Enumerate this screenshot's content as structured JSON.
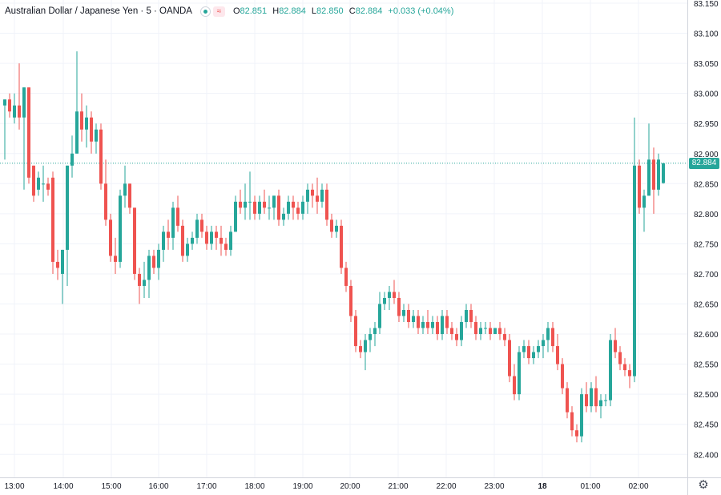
{
  "header": {
    "title": "Australian Dollar / Japanese Yen · 5 · OANDA",
    "ohlc": {
      "open_label": "O",
      "open": "82.851",
      "high_label": "H",
      "high": "82.884",
      "low_label": "L",
      "low": "82.850",
      "close_label": "C",
      "close": "82.884",
      "change": "+0.033 (+0.04%)"
    },
    "market_status_icon": "market-open-dot-icon",
    "indicator_icon": "wave-icon"
  },
  "last_price_label": "82.884",
  "settings_icon": "gear-icon",
  "colors": {
    "up": "#26a69a",
    "down": "#ef5350",
    "last_price_line": "#26a69a",
    "grid": "#f0f3fa",
    "axis_text": "#131722"
  },
  "chart_data": {
    "type": "candlestick",
    "interval": "5",
    "y_ticks": [
      "83.150",
      "83.100",
      "83.050",
      "83.000",
      "82.950",
      "82.900",
      "82.850",
      "82.800",
      "82.750",
      "82.700",
      "82.650",
      "82.600",
      "82.550",
      "82.500",
      "82.450",
      "82.400"
    ],
    "x_ticks": [
      "13:00",
      "14:00",
      "15:00",
      "16:00",
      "17:00",
      "18:00",
      "19:00",
      "20:00",
      "21:00",
      "22:00",
      "23:00",
      "18",
      "01:00",
      "02:00"
    ],
    "ylim": [
      82.37,
      83.155
    ],
    "last_price": 82.884,
    "grid": true,
    "candles": [
      [
        82.98,
        82.99,
        82.89,
        82.99
      ],
      [
        82.99,
        83.0,
        82.96,
        82.97
      ],
      [
        82.96,
        83.0,
        82.95,
        82.98
      ],
      [
        82.98,
        83.05,
        82.94,
        82.96
      ],
      [
        82.96,
        83.01,
        82.84,
        83.01
      ],
      [
        83.01,
        83.01,
        82.85,
        82.86
      ],
      [
        82.88,
        82.88,
        82.82,
        82.83
      ],
      [
        82.84,
        82.87,
        82.83,
        82.86
      ],
      [
        82.85,
        82.88,
        82.82,
        82.85
      ],
      [
        82.85,
        82.86,
        82.83,
        82.84
      ],
      [
        82.86,
        82.87,
        82.7,
        82.72
      ],
      [
        82.72,
        82.74,
        82.69,
        82.71
      ],
      [
        82.7,
        82.74,
        82.65,
        82.74
      ],
      [
        82.74,
        82.88,
        82.68,
        82.88
      ],
      [
        82.88,
        82.93,
        82.86,
        82.9
      ],
      [
        82.9,
        83.07,
        82.9,
        82.97
      ],
      [
        82.97,
        83.0,
        82.92,
        82.94
      ],
      [
        82.94,
        82.98,
        82.91,
        82.96
      ],
      [
        82.96,
        82.97,
        82.9,
        82.92
      ],
      [
        82.92,
        82.95,
        82.9,
        82.94
      ],
      [
        82.94,
        82.95,
        82.84,
        82.85
      ],
      [
        82.85,
        82.89,
        82.78,
        82.79
      ],
      [
        82.79,
        82.8,
        82.72,
        82.73
      ],
      [
        82.73,
        82.76,
        82.7,
        82.72
      ],
      [
        82.72,
        82.84,
        82.71,
        82.83
      ],
      [
        82.83,
        82.88,
        82.81,
        82.85
      ],
      [
        82.85,
        82.85,
        82.8,
        82.81
      ],
      [
        82.81,
        82.81,
        82.69,
        82.7
      ],
      [
        82.7,
        82.71,
        82.65,
        82.68
      ],
      [
        82.68,
        82.72,
        82.66,
        82.69
      ],
      [
        82.69,
        82.74,
        82.66,
        82.73
      ],
      [
        82.73,
        82.74,
        82.7,
        82.71
      ],
      [
        82.71,
        82.75,
        82.69,
        82.74
      ],
      [
        82.74,
        82.78,
        82.72,
        82.77
      ],
      [
        82.77,
        82.79,
        82.74,
        82.76
      ],
      [
        82.76,
        82.82,
        82.74,
        82.81
      ],
      [
        82.81,
        82.83,
        82.77,
        82.78
      ],
      [
        82.78,
        82.79,
        82.72,
        82.73
      ],
      [
        82.73,
        82.76,
        82.72,
        82.75
      ],
      [
        82.75,
        82.77,
        82.74,
        82.76
      ],
      [
        82.76,
        82.8,
        82.75,
        82.79
      ],
      [
        82.79,
        82.8,
        82.76,
        82.77
      ],
      [
        82.77,
        82.78,
        82.74,
        82.75
      ],
      [
        82.75,
        82.78,
        82.74,
        82.77
      ],
      [
        82.77,
        82.78,
        82.74,
        82.76
      ],
      [
        82.76,
        82.78,
        82.73,
        82.75
      ],
      [
        82.75,
        82.76,
        82.73,
        82.74
      ],
      [
        82.74,
        82.78,
        82.73,
        82.77
      ],
      [
        82.77,
        82.83,
        82.77,
        82.82
      ],
      [
        82.82,
        82.84,
        82.8,
        82.81
      ],
      [
        82.81,
        82.85,
        82.79,
        82.82
      ],
      [
        82.82,
        82.87,
        82.79,
        82.82
      ],
      [
        82.82,
        82.83,
        82.79,
        82.8
      ],
      [
        82.8,
        82.83,
        82.79,
        82.82
      ],
      [
        82.82,
        82.84,
        82.8,
        82.81
      ],
      [
        82.81,
        82.83,
        82.79,
        82.81
      ],
      [
        82.81,
        82.83,
        82.79,
        82.83
      ],
      [
        82.83,
        82.84,
        82.78,
        82.79
      ],
      [
        82.79,
        82.81,
        82.78,
        82.8
      ],
      [
        82.8,
        82.83,
        82.79,
        82.82
      ],
      [
        82.82,
        82.83,
        82.79,
        82.81
      ],
      [
        82.81,
        82.82,
        82.79,
        82.8
      ],
      [
        82.8,
        82.83,
        82.79,
        82.82
      ],
      [
        82.82,
        82.85,
        82.8,
        82.84
      ],
      [
        82.84,
        82.85,
        82.81,
        82.83
      ],
      [
        82.83,
        82.86,
        82.8,
        82.82
      ],
      [
        82.82,
        82.85,
        82.81,
        82.84
      ],
      [
        82.84,
        82.85,
        82.78,
        82.79
      ],
      [
        82.79,
        82.8,
        82.76,
        82.77
      ],
      [
        82.77,
        82.79,
        82.76,
        82.78
      ],
      [
        82.78,
        82.79,
        82.7,
        82.71
      ],
      [
        82.71,
        82.72,
        82.67,
        82.68
      ],
      [
        82.68,
        82.69,
        82.62,
        82.63
      ],
      [
        82.63,
        82.64,
        82.57,
        82.58
      ],
      [
        82.58,
        82.59,
        82.56,
        82.57
      ],
      [
        82.57,
        82.6,
        82.54,
        82.59
      ],
      [
        82.59,
        82.61,
        82.57,
        82.6
      ],
      [
        82.6,
        82.62,
        82.58,
        82.61
      ],
      [
        82.61,
        82.67,
        82.6,
        82.65
      ],
      [
        82.65,
        82.67,
        82.64,
        82.66
      ],
      [
        82.66,
        82.68,
        82.64,
        82.67
      ],
      [
        82.67,
        82.69,
        82.65,
        82.66
      ],
      [
        82.66,
        82.67,
        82.62,
        82.63
      ],
      [
        82.63,
        82.65,
        82.62,
        82.64
      ],
      [
        82.64,
        82.65,
        82.61,
        82.62
      ],
      [
        82.62,
        82.64,
        82.61,
        82.63
      ],
      [
        82.63,
        82.64,
        82.6,
        82.61
      ],
      [
        82.61,
        82.63,
        82.6,
        82.62
      ],
      [
        82.62,
        82.64,
        82.6,
        82.61
      ],
      [
        82.61,
        82.63,
        82.6,
        82.62
      ],
      [
        82.62,
        82.63,
        82.59,
        82.6
      ],
      [
        82.6,
        82.64,
        82.59,
        82.63
      ],
      [
        82.63,
        82.64,
        82.6,
        82.61
      ],
      [
        82.61,
        82.62,
        82.59,
        82.6
      ],
      [
        82.6,
        82.61,
        82.58,
        82.59
      ],
      [
        82.59,
        82.63,
        82.58,
        82.62
      ],
      [
        82.62,
        82.65,
        82.61,
        82.64
      ],
      [
        82.64,
        82.65,
        82.61,
        82.62
      ],
      [
        82.62,
        82.63,
        82.59,
        82.6
      ],
      [
        82.6,
        82.62,
        82.59,
        82.61
      ],
      [
        82.61,
        82.62,
        82.6,
        82.61
      ],
      [
        82.61,
        82.62,
        82.59,
        82.6
      ],
      [
        82.6,
        82.61,
        82.6,
        82.61
      ],
      [
        82.61,
        82.62,
        82.59,
        82.6
      ],
      [
        82.6,
        82.61,
        82.58,
        82.59
      ],
      [
        82.59,
        82.6,
        82.52,
        82.53
      ],
      [
        82.53,
        82.55,
        82.49,
        82.5
      ],
      [
        82.5,
        82.58,
        82.49,
        82.57
      ],
      [
        82.57,
        82.59,
        82.56,
        82.58
      ],
      [
        82.58,
        82.59,
        82.55,
        82.56
      ],
      [
        82.56,
        82.58,
        82.55,
        82.57
      ],
      [
        82.57,
        82.59,
        82.56,
        82.58
      ],
      [
        82.58,
        82.6,
        82.56,
        82.59
      ],
      [
        82.59,
        82.62,
        82.57,
        82.61
      ],
      [
        82.61,
        82.62,
        82.57,
        82.58
      ],
      [
        82.58,
        82.6,
        82.54,
        82.55
      ],
      [
        82.55,
        82.56,
        82.5,
        82.51
      ],
      [
        82.51,
        82.52,
        82.46,
        82.47
      ],
      [
        82.47,
        82.48,
        82.43,
        82.44
      ],
      [
        82.44,
        82.45,
        82.42,
        82.43
      ],
      [
        82.43,
        82.51,
        82.42,
        82.5
      ],
      [
        82.5,
        82.52,
        82.47,
        82.48
      ],
      [
        82.48,
        82.52,
        82.47,
        82.51
      ],
      [
        82.51,
        82.53,
        82.47,
        82.48
      ],
      [
        82.48,
        82.5,
        82.46,
        82.49
      ],
      [
        82.49,
        82.5,
        82.48,
        82.49
      ],
      [
        82.49,
        82.6,
        82.48,
        82.59
      ],
      [
        82.59,
        82.61,
        82.56,
        82.57
      ],
      [
        82.57,
        82.58,
        82.54,
        82.55
      ],
      [
        82.55,
        82.56,
        82.53,
        82.54
      ],
      [
        82.54,
        82.55,
        82.51,
        82.53
      ],
      [
        82.53,
        82.96,
        82.52,
        82.88
      ],
      [
        82.88,
        82.89,
        82.8,
        82.81
      ],
      [
        82.81,
        82.84,
        82.77,
        82.83
      ],
      [
        82.83,
        82.95,
        82.83,
        82.89
      ],
      [
        82.89,
        82.91,
        82.8,
        82.84
      ],
      [
        82.84,
        82.9,
        82.83,
        82.89
      ],
      [
        82.851,
        82.884,
        82.85,
        82.884
      ]
    ]
  }
}
